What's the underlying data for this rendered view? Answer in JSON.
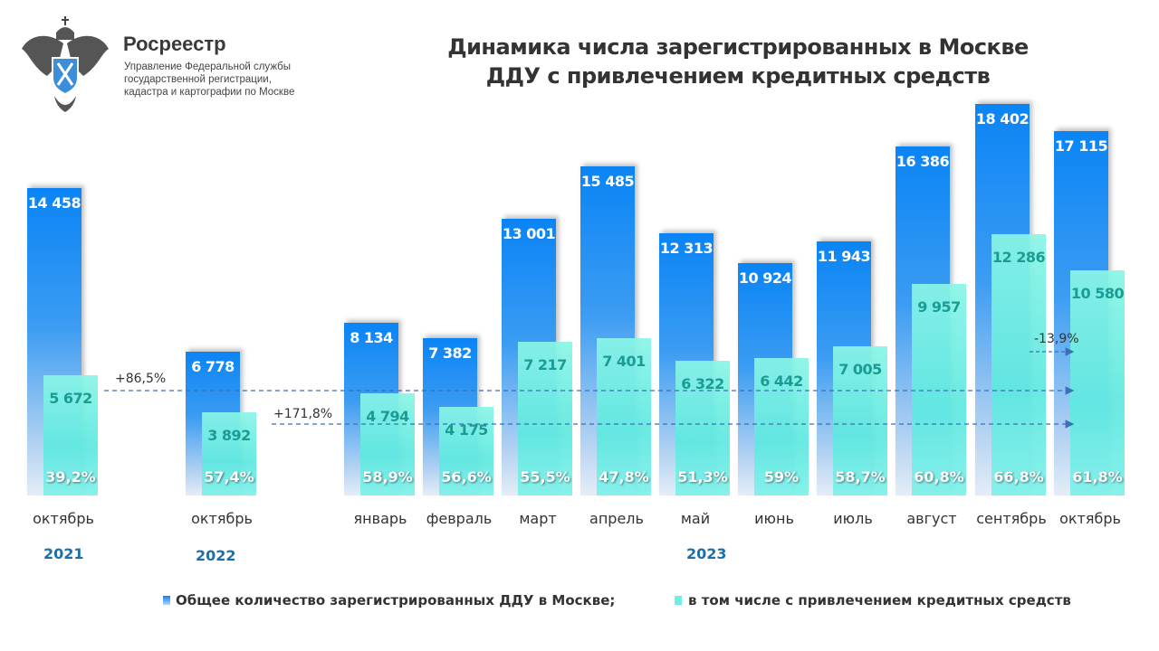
{
  "header": {
    "logo_title": "Росреестр",
    "logo_subtitle": [
      "Управление Федеральной службы",
      "государственной регистрации,",
      "кадастра и картографии по Москве"
    ]
  },
  "chart_data": {
    "type": "bar",
    "title": [
      "Динамика числа зарегистрированных в Москве",
      "ДДУ с привлечением кредитных средств"
    ],
    "categories": [
      "октябрь",
      "октябрь",
      "январь",
      "февраль",
      "март",
      "апрель",
      "май",
      "июнь",
      "июль",
      "август",
      "сентябрь",
      "октябрь"
    ],
    "years": [
      {
        "label": "2021"
      },
      {
        "label": "2022"
      },
      {
        "label": "2023"
      }
    ],
    "series": [
      {
        "name": "Общее количество зарегистрированных ДДУ в Москве;",
        "color": "#0a84f5",
        "values": [
          14458,
          6778,
          8134,
          7382,
          13001,
          15485,
          12313,
          10924,
          11943,
          16386,
          18402,
          17115
        ],
        "labels": [
          "14 458",
          "6 778",
          "8 134",
          "7 382",
          "13 001",
          "15 485",
          "12 313",
          "10 924",
          "11 943",
          "16 386",
          "18 402",
          "17 115"
        ]
      },
      {
        "name": "в том числе с привлечением кредитных средств",
        "color": "#6eeee4",
        "values": [
          5672,
          3892,
          4794,
          4175,
          7217,
          7401,
          6322,
          6442,
          7005,
          9957,
          12286,
          10580
        ],
        "labels": [
          "5 672",
          "3 892",
          "4 794",
          "4 175",
          "7 217",
          "7 401",
          "6 322",
          "6 442",
          "7 005",
          "9 957",
          "12 286",
          "10 580"
        ]
      }
    ],
    "share_labels": [
      "39,2%",
      "57,4%",
      "58,9%",
      "56,6%",
      "55,5%",
      "47,8%",
      "51,3%",
      "59%",
      "58,7%",
      "60,8%",
      "66,8%",
      "61,8%"
    ],
    "annotations": [
      "+86,5%",
      "+171,8%",
      "-13,9%"
    ],
    "legend_placement": "bottom",
    "grid": false
  }
}
